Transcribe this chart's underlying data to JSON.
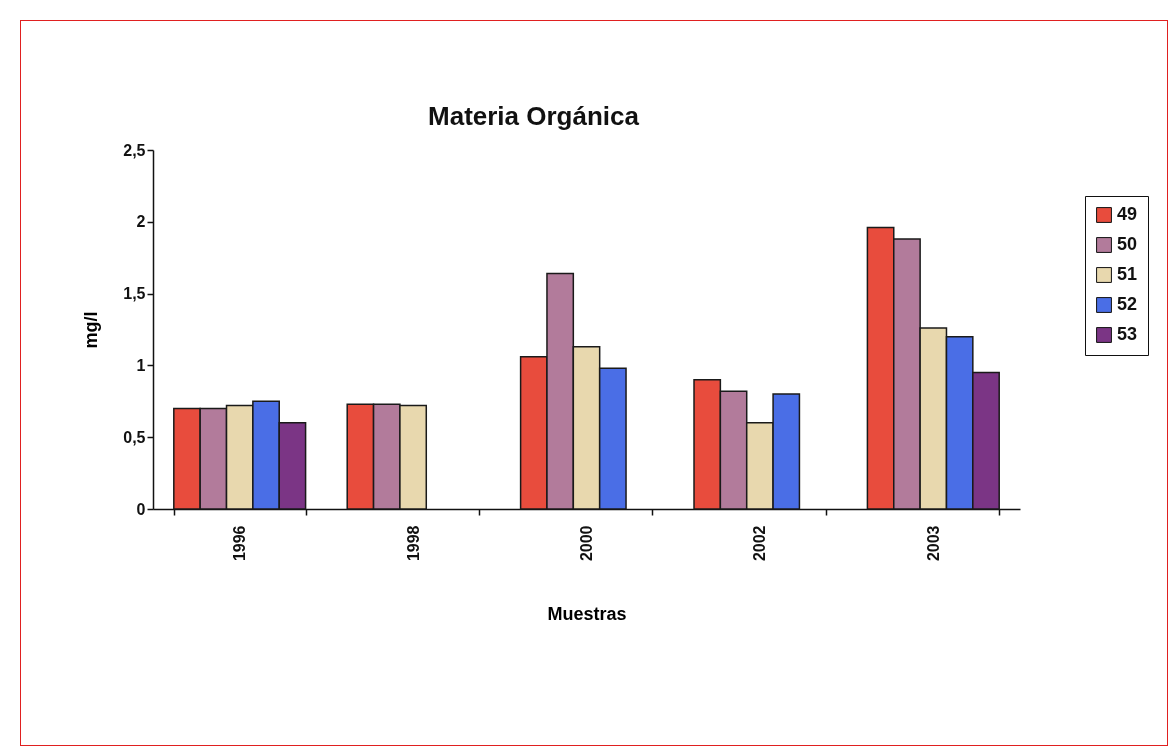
{
  "chart_data": {
    "type": "bar",
    "title": "Materia Orgánica",
    "xlabel": "Muestras",
    "ylabel": "mg/l",
    "categories": [
      "1996",
      "1998",
      "2000",
      "2002",
      "2003"
    ],
    "series": [
      {
        "name": "49",
        "color": "#e84c3d",
        "values": [
          0.7,
          0.73,
          1.06,
          0.9,
          1.96
        ]
      },
      {
        "name": "50",
        "color": "#b27b9b",
        "values": [
          0.7,
          0.73,
          1.64,
          0.82,
          1.88
        ]
      },
      {
        "name": "51",
        "color": "#e8d8ae",
        "values": [
          0.72,
          0.72,
          1.13,
          0.6,
          1.26
        ]
      },
      {
        "name": "52",
        "color": "#4a6ee6",
        "values": [
          0.75,
          null,
          0.98,
          0.8,
          1.2
        ]
      },
      {
        "name": "53",
        "color": "#7b3585",
        "values": [
          0.6,
          null,
          null,
          null,
          0.95
        ]
      }
    ],
    "ylim": [
      0,
      2.5
    ],
    "yticks": [
      0,
      {
        "value": 0.5,
        "label": "0,5"
      },
      1,
      {
        "value": 1.5,
        "label": "1,5"
      },
      2,
      {
        "value": 2.5,
        "label": "2,5"
      }
    ],
    "grid": false,
    "legend": "right"
  }
}
